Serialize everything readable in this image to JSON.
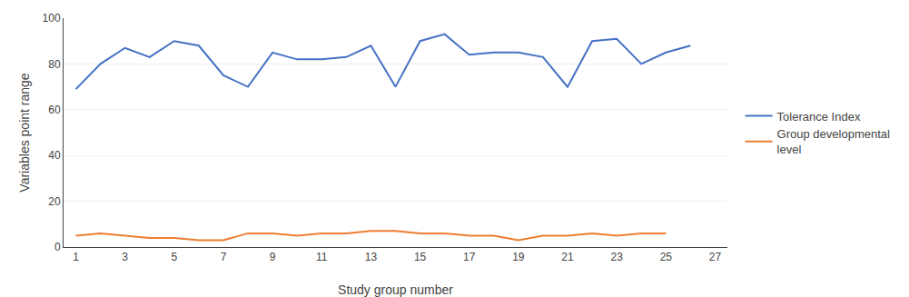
{
  "chart_data": {
    "type": "line",
    "xlabel": "Study group number",
    "ylabel": "Variables point range",
    "series": [
      {
        "name": "Tolerance Index",
        "color": "#4472C4",
        "x": [
          1,
          2,
          3,
          4,
          5,
          6,
          7,
          8,
          9,
          10,
          11,
          12,
          13,
          14,
          15,
          16,
          17,
          18,
          19,
          20,
          21,
          22,
          23,
          24,
          25,
          26
        ],
        "values": [
          69,
          80,
          87,
          83,
          90,
          88,
          75,
          70,
          85,
          82,
          82,
          83,
          88,
          70,
          90,
          93,
          84,
          85,
          85,
          83,
          70,
          90,
          91,
          80,
          85,
          88
        ]
      },
      {
        "name": "Group developmental\nlevel",
        "color": "#ED7D31",
        "x": [
          1,
          2,
          3,
          4,
          5,
          6,
          7,
          8,
          9,
          10,
          11,
          12,
          13,
          14,
          15,
          16,
          17,
          18,
          19,
          20,
          21,
          22,
          23,
          24,
          25
        ],
        "values": [
          5,
          6,
          5,
          4,
          4,
          3,
          3,
          6,
          6,
          5,
          6,
          6,
          7,
          7,
          6,
          6,
          5,
          5,
          3,
          5,
          5,
          6,
          5,
          6,
          6
        ]
      }
    ],
    "xlim": [
      0.5,
      27.5
    ],
    "xticks": [
      1,
      3,
      5,
      7,
      9,
      11,
      13,
      15,
      17,
      19,
      21,
      23,
      25,
      27
    ],
    "ylim": [
      0,
      100
    ],
    "yticks": [
      0,
      20,
      40,
      60,
      80,
      100
    ],
    "grid": "y",
    "legend": "right"
  }
}
